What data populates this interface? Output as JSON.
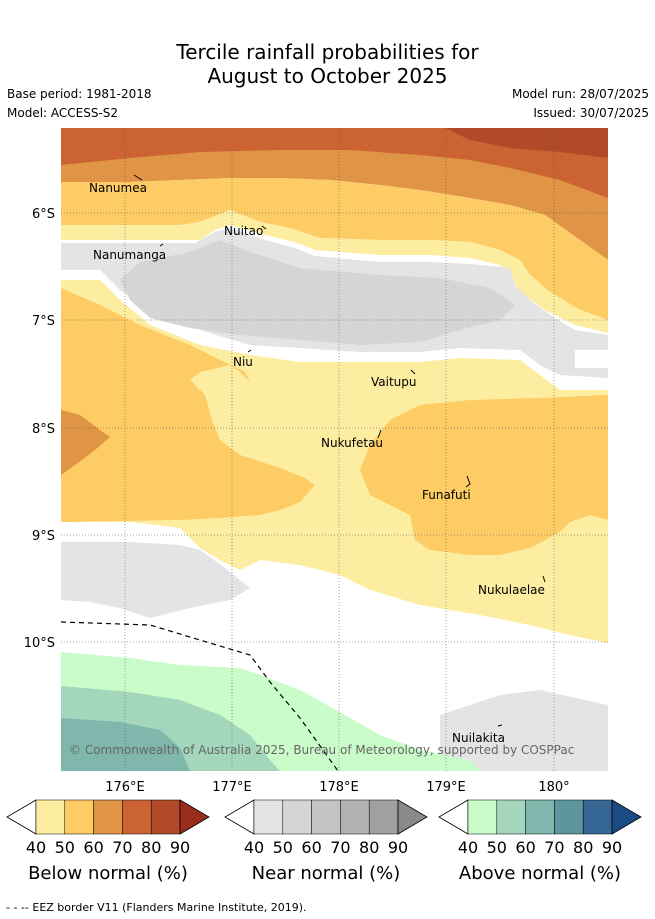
{
  "title_line1": "Tercile rainfall probabilities for",
  "title_line2": "August to October 2025",
  "base_period": "Base period: 1981-2018",
  "model": "Model: ACCESS-S2",
  "model_run": "Model run: 28/07/2025",
  "issued": "Issued: 30/07/2025",
  "copyright": "© Commonwealth of Australia 2025, Bureau of Meteorology, supported by COSPPac",
  "lat_labels": [
    "6°S",
    "7°S",
    "8°S",
    "9°S",
    "10°S"
  ],
  "lon_labels": [
    "176°E",
    "177°E",
    "178°E",
    "179°E",
    "180°"
  ],
  "places": [
    "Nanumea",
    "Nuitao",
    "Nanumanga",
    "Niu",
    "Vaitupu",
    "Nukufetau",
    "Funafuti",
    "Nukulaelae",
    "Nuilakita"
  ],
  "colorbars": [
    {
      "title": "Below normal (%)",
      "ticks": [
        "40",
        "50",
        "60",
        "70",
        "80",
        "90"
      ],
      "colors": [
        "#fdeda0",
        "#fdcc65",
        "#e09446",
        "#cc6332",
        "#b04a28",
        "#9a2d1c"
      ]
    },
    {
      "title": "Near normal (%)",
      "ticks": [
        "40",
        "50",
        "60",
        "70",
        "80",
        "90"
      ],
      "colors": [
        "#e4e4e4",
        "#d5d5d5",
        "#c4c4c4",
        "#b2b2b2",
        "#a0a0a0",
        "#8a8a8a"
      ]
    },
    {
      "title": "Above normal (%)",
      "ticks": [
        "40",
        "50",
        "60",
        "70",
        "80",
        "90"
      ],
      "colors": [
        "#c9fcc9",
        "#a3d6bb",
        "#80b7ad",
        "#5e96a0",
        "#356694",
        "#1a4b82"
      ]
    }
  ],
  "footnote": "- -  -- EEZ border V11 (Flanders Marine Institute, 2019)."
}
